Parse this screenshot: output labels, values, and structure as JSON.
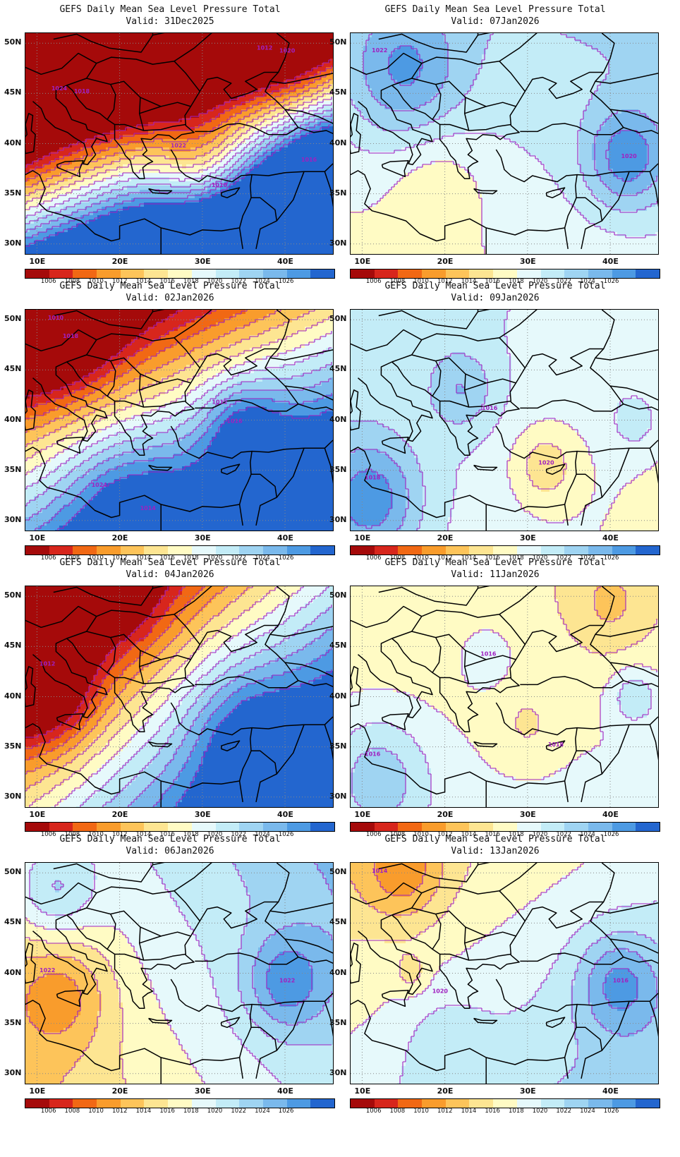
{
  "palette": [
    "#a50a0a",
    "#d7261c",
    "#f16814",
    "#f99c2c",
    "#fdc45a",
    "#fde592",
    "#fffbc4",
    "#e6f9fb",
    "#c3ecf7",
    "#9fd4f2",
    "#7ab9ec",
    "#4d9ae3",
    "#2366cf"
  ],
  "contour_color": "#a020c0",
  "colorbar_ticks": [
    "1006",
    "1008",
    "1010",
    "1012",
    "1014",
    "1016",
    "1018",
    "1020",
    "1022",
    "1024",
    "1026"
  ],
  "lat_labels": [
    "50N",
    "45N",
    "40N",
    "35N",
    "30N"
  ],
  "lon_labels": [
    "10E",
    "20E",
    "30E",
    "40E"
  ],
  "panels": [
    {
      "title": "GEFS Daily Mean Sea Level Pressure Total",
      "valid": "Valid: 31Dec2025",
      "contour_labels": [
        "1022",
        "1020",
        "1018",
        "1016",
        "1010",
        "1012",
        "1024"
      ],
      "pressure_field": {
        "base": 1016,
        "gx": 0.9,
        "gy": -2.8,
        "centers": [
          {
            "lon": 30,
            "lat": 37.5,
            "amp": -8,
            "r": 6
          },
          {
            "lon": 40,
            "lat": 49,
            "amp": -5,
            "r": 9
          },
          {
            "lon": 12,
            "lat": 47,
            "amp": 5,
            "r": 6
          },
          {
            "lon": 44,
            "lat": 38,
            "amp": 4,
            "r": 5
          }
        ]
      }
    },
    {
      "title": "GEFS Daily Mean Sea Level Pressure Total",
      "valid": "Valid: 07Jan2026",
      "contour_labels": [
        "1022",
        "1020"
      ],
      "pressure_field": {
        "base": 1020,
        "gx": 0.05,
        "gy": 0.15,
        "centers": [
          {
            "lon": 15,
            "lat": 47,
            "amp": 6,
            "r": 7
          },
          {
            "lon": 42,
            "lat": 38.5,
            "amp": 7,
            "r": 5
          },
          {
            "lon": 19,
            "lat": 36,
            "amp": -2.5,
            "r": 6
          }
        ]
      }
    },
    {
      "title": "GEFS Daily Mean Sea Level Pressure Total",
      "valid": "Valid: 02Jan2026",
      "contour_labels": [
        "1012",
        "1010",
        "1014",
        "1016",
        "1018",
        "1024"
      ],
      "pressure_field": {
        "base": 1020,
        "gx": 0.5,
        "gy": -1.3,
        "centers": [
          {
            "lon": 35,
            "lat": 39.5,
            "amp": 6,
            "r": 5
          },
          {
            "lon": 12,
            "lat": 50,
            "amp": -8,
            "r": 7
          },
          {
            "lon": 20,
            "lat": 33,
            "amp": 4,
            "r": 7
          }
        ]
      }
    },
    {
      "title": "GEFS Daily Mean Sea Level Pressure Total",
      "valid": "Valid: 09Jan2026",
      "contour_labels": [
        "1018",
        "1020",
        "1016"
      ],
      "pressure_field": {
        "base": 1019.5,
        "gx": -0.08,
        "gy": 0.05,
        "centers": [
          {
            "lon": 11,
            "lat": 32,
            "amp": 7,
            "r": 6
          },
          {
            "lon": 32,
            "lat": 35.5,
            "amp": -4,
            "r": 4
          },
          {
            "lon": 22,
            "lat": 43,
            "amp": 4,
            "r": 4
          },
          {
            "lon": 43,
            "lat": 40,
            "amp": 3,
            "r": 3
          }
        ]
      }
    },
    {
      "title": "GEFS Daily Mean Sea Level Pressure Total",
      "valid": "Valid: 04Jan2026",
      "contour_labels": [
        "1012"
      ],
      "pressure_field": {
        "base": 1018,
        "gx": 0.65,
        "gy": -0.9,
        "centers": [
          {
            "lon": 11,
            "lat": 41,
            "amp": -9,
            "r": 6
          },
          {
            "lon": 35,
            "lat": 37,
            "amp": 5,
            "r": 7
          },
          {
            "lon": 20,
            "lat": 50,
            "amp": -4,
            "r": 6
          }
        ]
      }
    },
    {
      "title": "GEFS Daily Mean Sea Level Pressure Total",
      "valid": "Valid: 11Jan2026",
      "contour_labels": [
        "1016",
        "1016",
        "1018"
      ],
      "pressure_field": {
        "base": 1017.5,
        "gx": 0.0,
        "gy": -0.1,
        "centers": [
          {
            "lon": 12,
            "lat": 32,
            "amp": 5,
            "r": 6
          },
          {
            "lon": 25,
            "lat": 44,
            "amp": 2.5,
            "r": 3
          },
          {
            "lon": 30,
            "lat": 37,
            "amp": -2,
            "r": 4
          },
          {
            "lon": 43,
            "lat": 40,
            "amp": 4,
            "r": 3
          },
          {
            "lon": 40,
            "lat": 49,
            "amp": -3,
            "r": 5
          }
        ]
      }
    },
    {
      "title": "GEFS Daily Mean Sea Level Pressure Total",
      "valid": "Valid: 06Jan2026",
      "contour_labels": [
        "1022",
        "1022"
      ],
      "pressure_field": {
        "base": 1019,
        "gx": 0.2,
        "gy": 0.15,
        "centers": [
          {
            "lon": 13,
            "lat": 38,
            "amp": -5,
            "r": 6
          },
          {
            "lon": 40,
            "lat": 39,
            "amp": 6,
            "r": 5
          },
          {
            "lon": 12,
            "lat": 48,
            "amp": 5,
            "r": 5
          }
        ]
      }
    },
    {
      "title": "GEFS Daily Mean Sea Level Pressure Total",
      "valid": "Valid: 13Jan2026",
      "contour_labels": [
        "1014",
        "1016",
        "1020"
      ],
      "pressure_field": {
        "base": 1019,
        "gx": 0.12,
        "gy": -0.2,
        "centers": [
          {
            "lon": 15,
            "lat": 50,
            "amp": -5,
            "r": 5
          },
          {
            "lon": 41,
            "lat": 39,
            "amp": 6,
            "r": 5
          },
          {
            "lon": 16,
            "lat": 40,
            "amp": -2.5,
            "r": 2
          },
          {
            "lon": 20,
            "lat": 33,
            "amp": 2,
            "r": 5
          }
        ]
      }
    }
  ]
}
